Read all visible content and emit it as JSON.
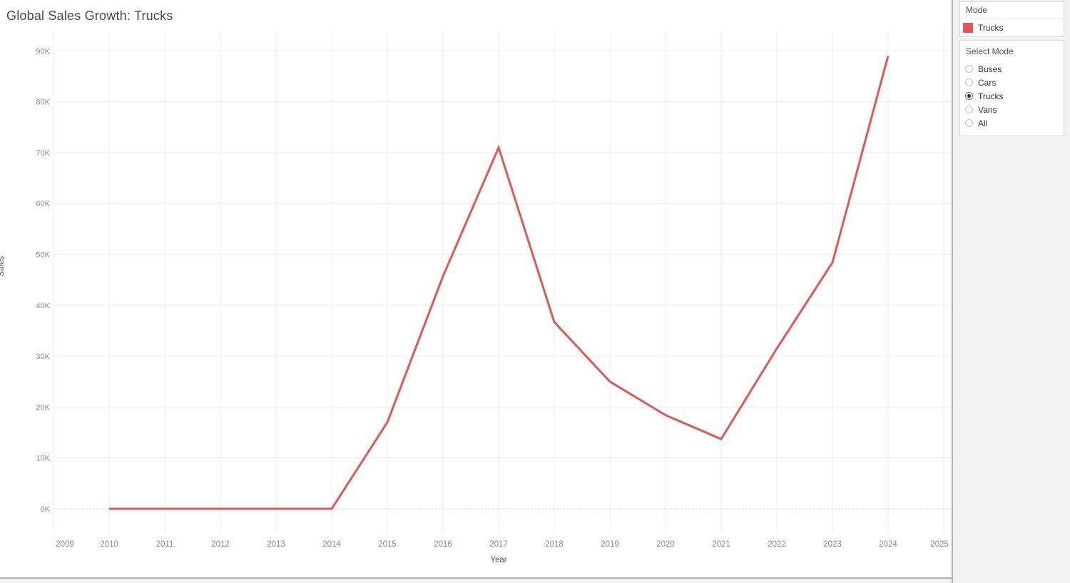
{
  "chart_data": {
    "type": "line",
    "title": "Global Sales Growth: Trucks",
    "xlabel": "Year",
    "ylabel": "Sales",
    "x_ticks": [
      2009,
      2010,
      2011,
      2012,
      2013,
      2014,
      2015,
      2016,
      2017,
      2018,
      2019,
      2020,
      2021,
      2022,
      2023,
      2024,
      2025
    ],
    "y_ticks_k": [
      0,
      10,
      20,
      30,
      40,
      50,
      60,
      70,
      80,
      90
    ],
    "y_tick_suffix": "K",
    "ylim_k": [
      0,
      90
    ],
    "grid": true,
    "zero_line_style": "dashed",
    "legend_position": "right-panel",
    "series": [
      {
        "name": "Trucks",
        "color": "#e15759",
        "x": [
          2010,
          2011,
          2012,
          2013,
          2014,
          2015,
          2016,
          2017,
          2018,
          2019,
          2020,
          2021,
          2022,
          2023,
          2024
        ],
        "values_k": [
          0,
          0,
          0,
          0,
          0,
          17,
          45.7,
          71,
          36.7,
          25,
          18.4,
          13.7,
          31.5,
          48.4,
          89
        ]
      }
    ]
  },
  "sidebar": {
    "legend": {
      "title": "Mode",
      "items": [
        {
          "label": "Trucks",
          "color": "#e15759"
        }
      ]
    },
    "filter": {
      "title": "Select Mode",
      "selected": "Trucks",
      "options": [
        "Buses",
        "Cars",
        "Trucks",
        "Vans",
        "All"
      ]
    }
  },
  "colors": {
    "accent": "#e15759",
    "grid": "#ececec",
    "zero_line": "#c9c9c9",
    "tick_label": "#8a8a8a",
    "axis_title": "#555555",
    "title": "#4a4a4a"
  }
}
